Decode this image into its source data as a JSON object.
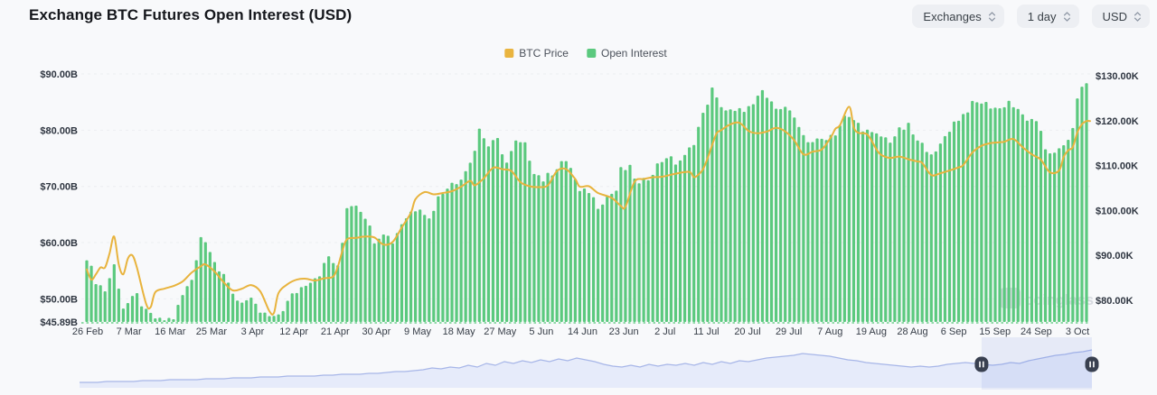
{
  "header": {
    "title": "Exchange BTC Futures Open Interest (USD)"
  },
  "controls": {
    "exchanges_label": "Exchanges",
    "interval_label": "1 day",
    "currency_label": "USD"
  },
  "legend": [
    {
      "label": "BTC Price",
      "color": "#e9b43f"
    },
    {
      "label": "Open Interest",
      "color": "#5bc97e"
    }
  ],
  "watermark": {
    "text": "coinglass"
  },
  "chart_data": {
    "type": "bar+line",
    "title": "Exchange BTC Futures Open Interest (USD)",
    "x_labels": [
      "26 Feb",
      "7 Mar",
      "16 Mar",
      "25 Mar",
      "3 Apr",
      "12 Apr",
      "21 Apr",
      "30 Apr",
      "9 May",
      "18 May",
      "27 May",
      "5 Jun",
      "14 Jun",
      "23 Jun",
      "2 Jul",
      "11 Jul",
      "20 Jul",
      "29 Jul",
      "7 Aug",
      "19 Aug",
      "28 Aug",
      "6 Sep",
      "15 Sep",
      "24 Sep",
      "3 Oct"
    ],
    "left_axis": {
      "name": "Open Interest",
      "unit": "USD billions",
      "ticks": [
        "$90.00B",
        "$80.00B",
        "$70.00B",
        "$60.00B",
        "$50.00B",
        "$45.89B"
      ],
      "tick_values": [
        90,
        80,
        70,
        60,
        50,
        45.89
      ],
      "min": 45.89,
      "max": 90
    },
    "right_axis": {
      "name": "BTC Price",
      "unit": "USD thousands",
      "ticks": [
        "$130.00K",
        "$120.00K",
        "$110.00K",
        "$100.00K",
        "$90.00K",
        "$80.00K"
      ],
      "tick_values": [
        130,
        120,
        110,
        100,
        90,
        80
      ],
      "min": 80,
      "max": 130
    },
    "n_points": 220,
    "grid": "horizontal-dashed",
    "series": [
      {
        "name": "Open Interest",
        "type": "bar",
        "color": "#5bc97e",
        "unit": "$B",
        "anchors": [
          [
            0,
            57.5
          ],
          [
            2,
            53.2
          ],
          [
            4,
            51.5
          ],
          [
            6,
            56.0
          ],
          [
            8,
            48.5
          ],
          [
            11,
            50.6
          ],
          [
            13,
            47.6
          ],
          [
            16,
            46.1
          ],
          [
            19,
            46.6
          ],
          [
            21,
            50.6
          ],
          [
            23,
            53.5
          ],
          [
            25,
            61.2
          ],
          [
            27,
            59.0
          ],
          [
            29,
            55.0
          ],
          [
            31,
            52.6
          ],
          [
            33,
            49.8
          ],
          [
            36,
            49.6
          ],
          [
            38,
            47.6
          ],
          [
            41,
            46.4
          ],
          [
            43,
            48.2
          ],
          [
            45,
            50.6
          ],
          [
            48,
            52.8
          ],
          [
            51,
            54.5
          ],
          [
            53,
            57.5
          ],
          [
            55,
            55.5
          ],
          [
            56,
            60.0
          ],
          [
            57,
            66.5
          ],
          [
            59,
            67.0
          ],
          [
            61,
            64.8
          ],
          [
            63,
            60.5
          ],
          [
            65,
            62.0
          ],
          [
            67,
            60.2
          ],
          [
            69,
            63.5
          ],
          [
            71,
            65.5
          ],
          [
            73,
            66.5
          ],
          [
            75,
            64.2
          ],
          [
            77,
            68.0
          ],
          [
            79,
            70.2
          ],
          [
            81,
            70.5
          ],
          [
            83,
            73.0
          ],
          [
            85,
            76.5
          ],
          [
            86,
            80.3
          ],
          [
            88,
            77.2
          ],
          [
            90,
            78.2
          ],
          [
            92,
            74.2
          ],
          [
            94,
            77.8
          ],
          [
            96,
            77.3
          ],
          [
            98,
            72.8
          ],
          [
            100,
            71.2
          ],
          [
            102,
            72.5
          ],
          [
            104,
            74.5
          ],
          [
            106,
            73.5
          ],
          [
            108,
            68.9
          ],
          [
            110,
            69.2
          ],
          [
            112,
            66.6
          ],
          [
            114,
            68.2
          ],
          [
            116,
            69.3
          ],
          [
            117,
            72.9
          ],
          [
            119,
            73.2
          ],
          [
            121,
            70.2
          ],
          [
            123,
            71.6
          ],
          [
            125,
            73.8
          ],
          [
            127,
            75.4
          ],
          [
            129,
            74.2
          ],
          [
            131,
            75.2
          ],
          [
            133,
            78.0
          ],
          [
            134,
            80.5
          ],
          [
            135,
            82.7
          ],
          [
            136,
            85.0
          ],
          [
            137,
            87.2
          ],
          [
            138,
            85.4
          ],
          [
            140,
            83.6
          ],
          [
            142,
            83.1
          ],
          [
            144,
            83.8
          ],
          [
            146,
            84.2
          ],
          [
            148,
            87.0
          ],
          [
            150,
            84.6
          ],
          [
            152,
            84.3
          ],
          [
            154,
            83.5
          ],
          [
            156,
            80.0
          ],
          [
            158,
            78.2
          ],
          [
            160,
            78.0
          ],
          [
            162,
            78.8
          ],
          [
            164,
            79.5
          ],
          [
            166,
            82.3
          ],
          [
            168,
            81.8
          ],
          [
            170,
            80.4
          ],
          [
            172,
            79.2
          ],
          [
            174,
            78.9
          ],
          [
            176,
            78.2
          ],
          [
            178,
            79.9
          ],
          [
            180,
            80.7
          ],
          [
            182,
            77.9
          ],
          [
            184,
            76.8
          ],
          [
            186,
            75.7
          ],
          [
            188,
            79.0
          ],
          [
            190,
            81.4
          ],
          [
            192,
            82.8
          ],
          [
            194,
            84.6
          ],
          [
            196,
            85.0
          ],
          [
            198,
            84.3
          ],
          [
            200,
            83.8
          ],
          [
            202,
            85.2
          ],
          [
            204,
            83.3
          ],
          [
            206,
            82.0
          ],
          [
            208,
            81.0
          ],
          [
            209,
            80.0
          ],
          [
            210,
            76.9
          ],
          [
            212,
            75.6
          ],
          [
            214,
            77.2
          ],
          [
            215,
            78.4
          ],
          [
            216,
            80.2
          ],
          [
            217,
            85.8
          ],
          [
            218,
            87.6
          ],
          [
            219,
            88.4
          ]
        ]
      },
      {
        "name": "BTC Price",
        "type": "line",
        "color": "#e8b33d",
        "unit": "$K",
        "anchors": [
          [
            0,
            86.9
          ],
          [
            1,
            84.6
          ],
          [
            2,
            85.8
          ],
          [
            3,
            87.3
          ],
          [
            4,
            87.3
          ],
          [
            5,
            90.5
          ],
          [
            6,
            94.2
          ],
          [
            7,
            88.0
          ],
          [
            8,
            85.8
          ],
          [
            9,
            89.3
          ],
          [
            10,
            90.0
          ],
          [
            11,
            87.2
          ],
          [
            13,
            79.2
          ],
          [
            14,
            78.5
          ],
          [
            15,
            81.8
          ],
          [
            17,
            82.6
          ],
          [
            19,
            83.2
          ],
          [
            21,
            84.2
          ],
          [
            23,
            86.2
          ],
          [
            25,
            87.6
          ],
          [
            26,
            88.0
          ],
          [
            28,
            86.4
          ],
          [
            30,
            84.0
          ],
          [
            32,
            82.2
          ],
          [
            34,
            82.6
          ],
          [
            36,
            83.4
          ],
          [
            38,
            82.0
          ],
          [
            40,
            77.6
          ],
          [
            41,
            77.2
          ],
          [
            42,
            81.6
          ],
          [
            44,
            83.6
          ],
          [
            46,
            84.6
          ],
          [
            48,
            84.8
          ],
          [
            50,
            84.4
          ],
          [
            52,
            84.9
          ],
          [
            54,
            85.3
          ],
          [
            55,
            87.5
          ],
          [
            56,
            91.0
          ],
          [
            57,
            93.6
          ],
          [
            59,
            93.9
          ],
          [
            61,
            94.2
          ],
          [
            63,
            94.0
          ],
          [
            65,
            92.4
          ],
          [
            67,
            93.0
          ],
          [
            69,
            96.2
          ],
          [
            71,
            99.5
          ],
          [
            72,
            102.5
          ],
          [
            74,
            104.1
          ],
          [
            76,
            103.6
          ],
          [
            78,
            103.9
          ],
          [
            80,
            104.3
          ],
          [
            82,
            105.3
          ],
          [
            84,
            106.6
          ],
          [
            85,
            105.6
          ],
          [
            87,
            107.2
          ],
          [
            89,
            109.5
          ],
          [
            91,
            109.2
          ],
          [
            93,
            108.8
          ],
          [
            95,
            106.3
          ],
          [
            97,
            105.4
          ],
          [
            99,
            105.2
          ],
          [
            101,
            105.6
          ],
          [
            103,
            108.8
          ],
          [
            105,
            109.2
          ],
          [
            107,
            107.0
          ],
          [
            108,
            105.3
          ],
          [
            110,
            105.4
          ],
          [
            112,
            103.9
          ],
          [
            115,
            102.8
          ],
          [
            117,
            101.0
          ],
          [
            118,
            100.8
          ],
          [
            120,
            106.4
          ],
          [
            122,
            107.0
          ],
          [
            124,
            107.4
          ],
          [
            126,
            107.5
          ],
          [
            129,
            108.2
          ],
          [
            132,
            108.6
          ],
          [
            133,
            107.4
          ],
          [
            134,
            108.0
          ],
          [
            135,
            109.2
          ],
          [
            136,
            111.6
          ],
          [
            137,
            114.6
          ],
          [
            138,
            117.2
          ],
          [
            139,
            117.9
          ],
          [
            141,
            119.2
          ],
          [
            143,
            119.5
          ],
          [
            145,
            117.7
          ],
          [
            147,
            117.2
          ],
          [
            149,
            117.6
          ],
          [
            151,
            118.4
          ],
          [
            153,
            117.6
          ],
          [
            155,
            115.6
          ],
          [
            157,
            112.5
          ],
          [
            159,
            113.1
          ],
          [
            161,
            113.6
          ],
          [
            163,
            116.3
          ],
          [
            164,
            118.2
          ],
          [
            165,
            119.0
          ],
          [
            167,
            123.1
          ],
          [
            168,
            118.6
          ],
          [
            169,
            117.3
          ],
          [
            171,
            116.9
          ],
          [
            173,
            113.6
          ],
          [
            174,
            112.4
          ],
          [
            176,
            111.7
          ],
          [
            178,
            112.0
          ],
          [
            180,
            111.4
          ],
          [
            182,
            110.9
          ],
          [
            183,
            110.6
          ],
          [
            185,
            107.9
          ],
          [
            187,
            108.3
          ],
          [
            189,
            108.9
          ],
          [
            191,
            109.6
          ],
          [
            192,
            110.1
          ],
          [
            194,
            112.9
          ],
          [
            196,
            114.4
          ],
          [
            198,
            115.0
          ],
          [
            200,
            115.2
          ],
          [
            201,
            115.3
          ],
          [
            203,
            115.9
          ],
          [
            205,
            114.1
          ],
          [
            207,
            112.5
          ],
          [
            209,
            111.3
          ],
          [
            211,
            108.5
          ],
          [
            213,
            108.9
          ],
          [
            214,
            111.9
          ],
          [
            215,
            113.4
          ],
          [
            216,
            114.1
          ],
          [
            217,
            117.4
          ],
          [
            218,
            119.2
          ],
          [
            219,
            119.9
          ]
        ]
      }
    ]
  },
  "navigator": {
    "description": "full-history open interest minimap",
    "heights": [
      6,
      6,
      6,
      7,
      7,
      7,
      7,
      8,
      8,
      8,
      9,
      9,
      9,
      9,
      10,
      10,
      10,
      11,
      11,
      11,
      12,
      12,
      12,
      13,
      13,
      13,
      13,
      14,
      14,
      15,
      15,
      15,
      16,
      16,
      17,
      18,
      18,
      19,
      20,
      22,
      21,
      23,
      22,
      25,
      23,
      27,
      25,
      29,
      27,
      30,
      28,
      31,
      29,
      32,
      30,
      33,
      31,
      29,
      26,
      24,
      23,
      25,
      23,
      26,
      24,
      26,
      25,
      27,
      25,
      28,
      26,
      29,
      27,
      30,
      29,
      31,
      33,
      34,
      35,
      36,
      38,
      37,
      36,
      35,
      33,
      31,
      30,
      28,
      27,
      26,
      25,
      24,
      23,
      24,
      23,
      24,
      26,
      27,
      28,
      27,
      26,
      25,
      26,
      28,
      27,
      30,
      32,
      34,
      36,
      37,
      39,
      40,
      42
    ],
    "selection": {
      "start": 0.891,
      "end": 1.0
    },
    "area_color": "#e3e9f9",
    "line_color": "#a7b6e8",
    "selection_color": "rgba(110,140,224,0.13)",
    "handle_color": "#394050"
  }
}
